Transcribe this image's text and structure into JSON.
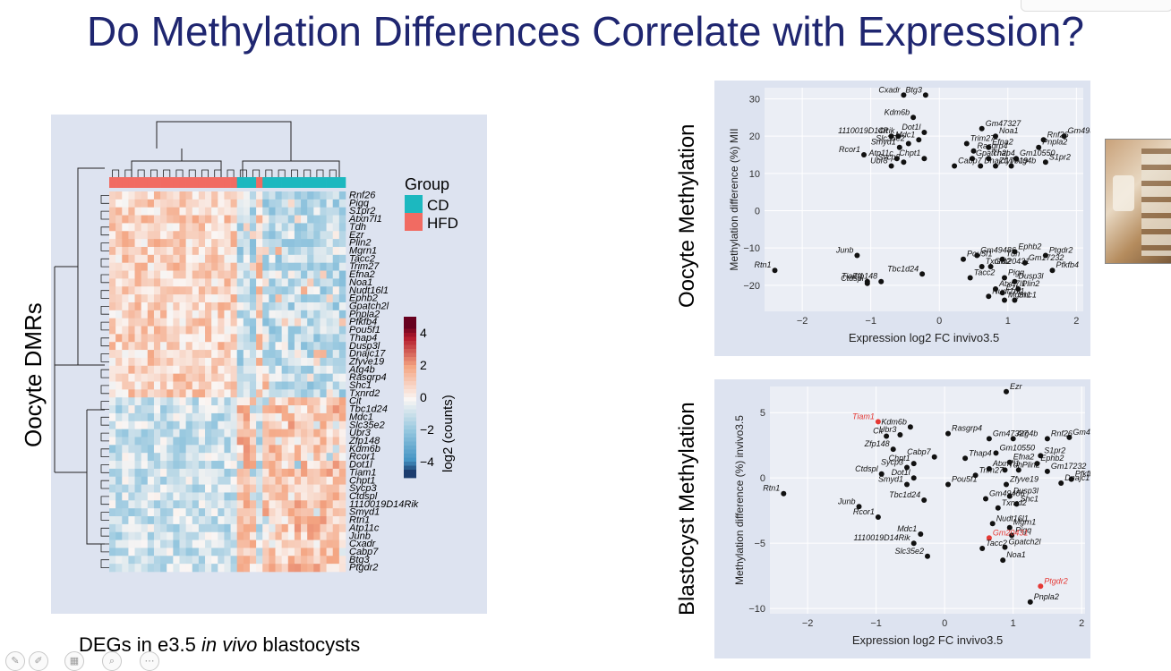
{
  "slide": {
    "title": "Do Methylation Differences Correlate with Expression?",
    "left_axis_label": "Oocyte DMRs",
    "caption_pre": "DEGs in e3.5 ",
    "caption_italic": "in vivo",
    "caption_post": " blastocysts",
    "top_side_label": "Oocyte Methylation",
    "bottom_side_label": "Blastocyst Methylation"
  },
  "colors": {
    "title": "#1f2670",
    "cd": "#1cb8bf",
    "hfd": "#f16b62",
    "panel_bg": "#dde3f0",
    "highlight": "#e53935"
  },
  "icons": [
    "highlighter-icon",
    "pen-icon",
    "grid-icon",
    "zoom-icon",
    "more-icon"
  ],
  "chart_data": [
    {
      "type": "heatmap",
      "legend": {
        "title": "Group",
        "items": [
          "CD",
          "HFD"
        ]
      },
      "colorbar": {
        "label": "log2 (counts)",
        "ticks": [
          "4",
          "2",
          "0",
          "−2",
          "−4"
        ],
        "range": [
          -5,
          5
        ]
      },
      "rows": [
        "Rnf26",
        "Pigq",
        "S1pr2",
        "Atxn7l1",
        "Tdh",
        "Ezr",
        "Plin2",
        "Mgrn1",
        "Tacc2",
        "Trim27",
        "Efna2",
        "Noa1",
        "Nudt16l1",
        "Ephb2",
        "Gpatch2l",
        "Pnpla2",
        "Pfkfb4",
        "Pou5f1",
        "Thap4",
        "Dusp3l",
        "Dnajc17",
        "Zfyve19",
        "Atg4b",
        "Rasgrp4",
        "Shc1",
        "Txnrd2",
        "Cit",
        "Tbc1d24",
        "Mdc1",
        "Slc35e2",
        "Ubr3",
        "Zfp148",
        "Kdm6b",
        "Rcor1",
        "Dot1l",
        "Tiam1",
        "Chpt1",
        "Sycp3",
        "Ctdspl",
        "1110019D14Rik",
        "Smyd1",
        "Rtn1",
        "Atp11c",
        "Junb",
        "Cxadr",
        "Cabp7",
        "Btg3",
        "Ptgdr2"
      ],
      "columns_groups": [
        "HFD",
        "HFD",
        "HFD",
        "HFD",
        "HFD",
        "HFD",
        "HFD",
        "HFD",
        "HFD",
        "HFD",
        "HFD",
        "HFD",
        "HFD",
        "HFD",
        "HFD",
        "HFD",
        "HFD",
        "HFD",
        "HFD",
        "HFD",
        "CD",
        "CD",
        "CD",
        "HFD",
        "CD",
        "CD",
        "CD",
        "CD",
        "CD",
        "CD",
        "CD",
        "CD",
        "CD",
        "CD",
        "CD",
        "CD",
        "CD"
      ],
      "row_profile": [
        1,
        1,
        1,
        1,
        1,
        1,
        1,
        1,
        1,
        1,
        1,
        1,
        1,
        1,
        1,
        1,
        1,
        1,
        1,
        1,
        1,
        1,
        1,
        1,
        1,
        1,
        -1,
        -1,
        -1,
        -1,
        -1,
        -1,
        -1,
        -1,
        -1,
        -1,
        -1,
        -1,
        -1,
        -1,
        -1,
        -1,
        -1,
        -1,
        -1,
        -1,
        -1,
        -1
      ]
    },
    {
      "type": "scatter",
      "xlabel": "Expression log2 FC invivo3.5",
      "ylabel": "Methylation difference (%) MII",
      "xlim": [
        -2.55,
        2.1
      ],
      "ylim": [
        -27,
        33
      ],
      "xticks": [
        -2,
        -1,
        0,
        1,
        2
      ],
      "yticks": [
        -20,
        -10,
        0,
        10,
        20,
        30
      ],
      "grid": true,
      "points": [
        {
          "label": "Cxadr",
          "x": -0.52,
          "y": 31
        },
        {
          "label": "Btg3",
          "x": -0.2,
          "y": 31
        },
        {
          "label": "Kdm6b",
          "x": -0.38,
          "y": 25
        },
        {
          "label": "1110019D14Rik",
          "x": -0.6,
          "y": 20
        },
        {
          "label": "Dot1l",
          "x": -0.22,
          "y": 21
        },
        {
          "label": "Cit",
          "x": -0.7,
          "y": 20
        },
        {
          "label": "Mdc1",
          "x": -0.3,
          "y": 19
        },
        {
          "label": "Smyd1",
          "x": -0.58,
          "y": 17
        },
        {
          "label": "Slc35e2",
          "x": -0.45,
          "y": 18
        },
        {
          "label": "Rcor1",
          "x": -1.1,
          "y": 15
        },
        {
          "label": "Atp11c",
          "x": -0.62,
          "y": 14
        },
        {
          "label": "Ubr3",
          "x": -0.7,
          "y": 12
        },
        {
          "label": "Sycp3",
          "x": -0.52,
          "y": 13
        },
        {
          "label": "Chpt1",
          "x": -0.22,
          "y": 14
        },
        {
          "label": "Gm47327",
          "x": 0.62,
          "y": 22
        },
        {
          "label": "Gm49380",
          "x": 1.82,
          "y": 20
        },
        {
          "label": "Noa1",
          "x": 0.82,
          "y": 20
        },
        {
          "label": "Rnf26",
          "x": 1.52,
          "y": 19
        },
        {
          "label": "Trim27",
          "x": 0.4,
          "y": 18
        },
        {
          "label": "Efna2",
          "x": 0.72,
          "y": 17
        },
        {
          "label": "Pnpla2",
          "x": 1.45,
          "y": 17
        },
        {
          "label": "Rasgrp4",
          "x": 0.5,
          "y": 16
        },
        {
          "label": "Gpatch2l",
          "x": 0.48,
          "y": 14
        },
        {
          "label": "Thap4",
          "x": 0.72,
          "y": 14
        },
        {
          "label": "Gm10550",
          "x": 1.12,
          "y": 14
        },
        {
          "label": "S1pr2",
          "x": 1.55,
          "y": 13
        },
        {
          "label": "Atg4b",
          "x": 1.05,
          "y": 12
        },
        {
          "label": "Cabp7",
          "x": 0.22,
          "y": 12
        },
        {
          "label": "Dnajc17",
          "x": 0.6,
          "y": 12
        },
        {
          "label": "Zfyve19",
          "x": 0.82,
          "y": 12
        },
        {
          "label": "Gm49486",
          "x": 0.55,
          "y": -12
        },
        {
          "label": "Ephb2",
          "x": 1.1,
          "y": -11
        },
        {
          "label": "Ptgdr2",
          "x": 1.55,
          "y": -12
        },
        {
          "label": "Pou5f1",
          "x": 0.35,
          "y": -13
        },
        {
          "label": "Tdh",
          "x": 0.92,
          "y": -13
        },
        {
          "label": "Gm17232",
          "x": 1.25,
          "y": -14
        },
        {
          "label": "Txnrd2",
          "x": 0.62,
          "y": -15
        },
        {
          "label": "Gm20431",
          "x": 0.75,
          "y": -15
        },
        {
          "label": "Pfkfb4",
          "x": 1.65,
          "y": -16
        },
        {
          "label": "Tbc1d24",
          "x": -0.25,
          "y": -17
        },
        {
          "label": "Tacc2",
          "x": 0.45,
          "y": -18
        },
        {
          "label": "Pigq",
          "x": 0.95,
          "y": -18
        },
        {
          "label": "Dusp3l",
          "x": 1.1,
          "y": -19
        },
        {
          "label": "Junb",
          "x": -1.2,
          "y": -12
        },
        {
          "label": "Tiam1",
          "x": -1.05,
          "y": -19
        },
        {
          "label": "Ctdspl",
          "x": -1.05,
          "y": -19.5
        },
        {
          "label": "Zfp148",
          "x": -0.85,
          "y": -19
        },
        {
          "label": "Atxn7l1",
          "x": 0.82,
          "y": -21
        },
        {
          "label": "Ezr",
          "x": 0.92,
          "y": -22
        },
        {
          "label": "Plin2",
          "x": 1.15,
          "y": -21
        },
        {
          "label": "Nudt16l1",
          "x": 0.72,
          "y": -23
        },
        {
          "label": "Mgrn1",
          "x": 0.95,
          "y": -24
        },
        {
          "label": "Shc1",
          "x": 1.1,
          "y": -24
        },
        {
          "label": "Rtn1",
          "x": -2.4,
          "y": -16
        }
      ]
    },
    {
      "type": "scatter",
      "xlabel": "Expression log2 FC invivo3.5",
      "ylabel": "Methylation difference (%) invivo3.5",
      "xlim": [
        -2.55,
        2.05
      ],
      "ylim": [
        -10.4,
        7
      ],
      "xticks": [
        -2,
        -1,
        0,
        1,
        2
      ],
      "yticks": [
        -10,
        -5,
        0,
        5
      ],
      "grid": true,
      "points": [
        {
          "label": "Ezr",
          "x": 0.9,
          "y": 6.6
        },
        {
          "label": "Gm49380",
          "x": 1.82,
          "y": 3.1
        },
        {
          "label": "Tiam1",
          "x": -0.97,
          "y": 4.3,
          "highlight": true
        },
        {
          "label": "Kdm6b",
          "x": -0.5,
          "y": 3.9
        },
        {
          "label": "Cit",
          "x": -0.85,
          "y": 3.2
        },
        {
          "label": "Ubr3",
          "x": -0.65,
          "y": 3.3
        },
        {
          "label": "Rasgrp4",
          "x": 0.05,
          "y": 3.4
        },
        {
          "label": "Gm47327",
          "x": 0.65,
          "y": 3.0
        },
        {
          "label": "Rnf26",
          "x": 1.5,
          "y": 3.0
        },
        {
          "label": "Atg4b",
          "x": 1.0,
          "y": 3.0
        },
        {
          "label": "Zfp148",
          "x": -0.75,
          "y": 2.2
        },
        {
          "label": "Gm10550",
          "x": 0.75,
          "y": 1.9
        },
        {
          "label": "S1pr2",
          "x": 1.4,
          "y": 1.7
        },
        {
          "label": "Cabp7",
          "x": -0.15,
          "y": 1.6
        },
        {
          "label": "Thap4",
          "x": 0.3,
          "y": 1.5
        },
        {
          "label": "Chpt1",
          "x": -0.45,
          "y": 1.1
        },
        {
          "label": "Efna2",
          "x": 0.95,
          "y": 1.2
        },
        {
          "label": "Ephb2",
          "x": 1.35,
          "y": 1.1
        },
        {
          "label": "Sycp3",
          "x": -0.55,
          "y": 0.8
        },
        {
          "label": "Atxn7l1",
          "x": 0.65,
          "y": 0.7
        },
        {
          "label": "Tdh",
          "x": 0.88,
          "y": 0.6
        },
        {
          "label": "Plin2",
          "x": 1.08,
          "y": 0.6
        },
        {
          "label": "Gm17232",
          "x": 1.5,
          "y": 0.5
        },
        {
          "label": "Ctdspl",
          "x": -0.92,
          "y": 0.3
        },
        {
          "label": "Trim27",
          "x": 0.45,
          "y": 0.2
        },
        {
          "label": "Dot1l",
          "x": -0.45,
          "y": 0.0
        },
        {
          "label": "Pfkfb4",
          "x": 1.85,
          "y": -0.1
        },
        {
          "label": "Smyd1",
          "x": -0.55,
          "y": -0.5
        },
        {
          "label": "Pou5f1",
          "x": 0.05,
          "y": -0.5
        },
        {
          "label": "Zfyve19",
          "x": 0.9,
          "y": -0.5
        },
        {
          "label": "Dnajc17",
          "x": 1.7,
          "y": -0.4
        },
        {
          "label": "Dusp3l",
          "x": 0.95,
          "y": -1.4
        },
        {
          "label": "Gm49486",
          "x": 0.6,
          "y": -1.6
        },
        {
          "label": "Tbc1d24",
          "x": -0.3,
          "y": -1.7
        },
        {
          "label": "Txnrd2",
          "x": 0.78,
          "y": -2.3
        },
        {
          "label": "Shc1",
          "x": 1.05,
          "y": -2.0
        },
        {
          "label": "Junb",
          "x": -1.25,
          "y": -2.2
        },
        {
          "label": "Rcor1",
          "x": -0.97,
          "y": -3.0
        },
        {
          "label": "Nudt16l1",
          "x": 0.7,
          "y": -3.5
        },
        {
          "label": "Mgrn1",
          "x": 0.95,
          "y": -3.8
        },
        {
          "label": "Mdc1",
          "x": -0.35,
          "y": -4.3
        },
        {
          "label": "Pigq",
          "x": 0.98,
          "y": -4.4
        },
        {
          "label": "Gm20431",
          "x": 0.65,
          "y": -4.6,
          "highlight": true
        },
        {
          "label": "1110019D14Rik",
          "x": -0.45,
          "y": -5.0
        },
        {
          "label": "Gpatch2l",
          "x": 0.88,
          "y": -5.3
        },
        {
          "label": "Tacc2",
          "x": 0.55,
          "y": -5.4
        },
        {
          "label": "Slc35e2",
          "x": -0.25,
          "y": -6.0
        },
        {
          "label": "Noa1",
          "x": 0.85,
          "y": -6.3
        },
        {
          "label": "Rtn1",
          "x": -2.35,
          "y": -1.2
        },
        {
          "label": "Ptgdr2",
          "x": 1.4,
          "y": -8.3,
          "highlight": true
        },
        {
          "label": "Pnpla2",
          "x": 1.25,
          "y": -9.5
        }
      ]
    }
  ]
}
